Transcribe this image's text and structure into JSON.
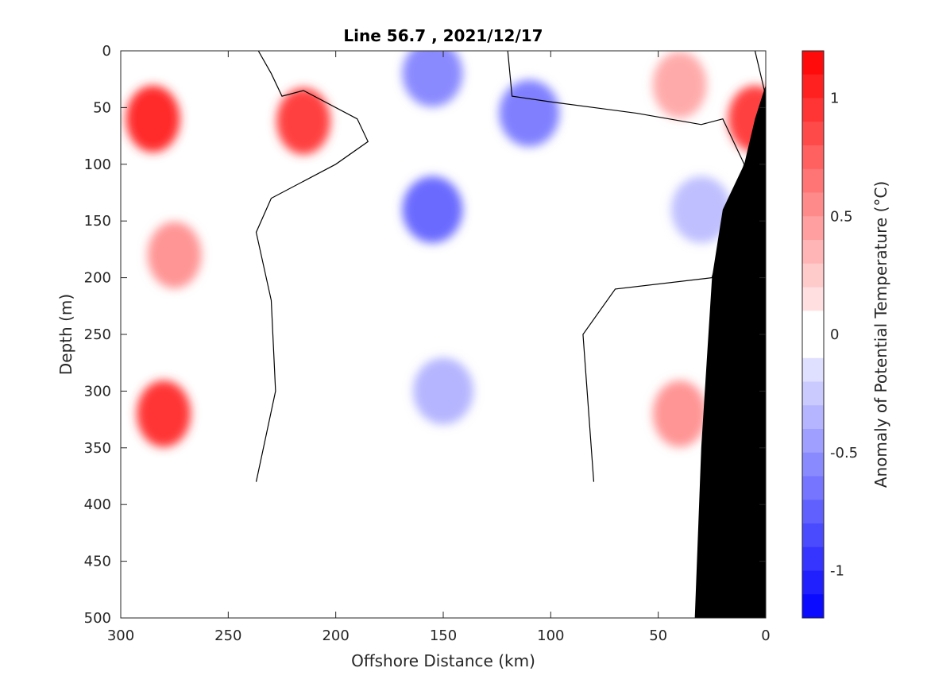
{
  "chart_data": {
    "type": "heatmap",
    "title": "Line 56.7 , 2021/12/17",
    "xlabel": "Offshore Distance (km)",
    "ylabel": "Depth (m)",
    "colorbar_label": "Anomaly of Potential Temperature (°C)",
    "xlim": [
      300,
      0
    ],
    "ylim": [
      0,
      500
    ],
    "x_ticks": [
      300,
      250,
      200,
      150,
      100,
      50,
      0
    ],
    "y_ticks": [
      0,
      50,
      100,
      150,
      200,
      250,
      300,
      350,
      400,
      450,
      500
    ],
    "clim": [
      -1.2,
      1.2
    ],
    "colorbar_ticks": [
      1,
      0.5,
      0,
      -0.5,
      -1
    ],
    "colorbar_levels": 24,
    "colors": {
      "negative": "#0000ff",
      "positive": "#ff0000",
      "zero": "#ffffff",
      "bathymetry": "#000000",
      "contour": "#000000"
    },
    "data_max_depth": 380,
    "features": [
      {
        "kind": "warm",
        "x": 285,
        "depth": 60,
        "anomaly": 1.0
      },
      {
        "kind": "warm",
        "x": 215,
        "depth": 62,
        "anomaly": 0.9
      },
      {
        "kind": "warm",
        "x": 280,
        "depth": 320,
        "anomaly": 0.95
      },
      {
        "kind": "warm",
        "x": 275,
        "depth": 180,
        "anomaly": 0.5
      },
      {
        "kind": "warm",
        "x": 5,
        "depth": 60,
        "anomaly": 0.9
      },
      {
        "kind": "warm",
        "x": 40,
        "depth": 30,
        "anomaly": 0.4
      },
      {
        "kind": "warm",
        "x": 40,
        "depth": 320,
        "anomaly": 0.5
      },
      {
        "kind": "cool",
        "x": 155,
        "depth": 140,
        "anomaly": -0.7
      },
      {
        "kind": "cool",
        "x": 155,
        "depth": 20,
        "anomaly": -0.55
      },
      {
        "kind": "cool",
        "x": 110,
        "depth": 55,
        "anomaly": -0.6
      },
      {
        "kind": "cool",
        "x": 150,
        "depth": 300,
        "anomaly": -0.35
      },
      {
        "kind": "cool",
        "x": 30,
        "depth": 140,
        "anomaly": -0.3
      }
    ],
    "bathymetry": [
      [
        0,
        30
      ],
      [
        5,
        60
      ],
      [
        10,
        100
      ],
      [
        20,
        140
      ],
      [
        25,
        200
      ],
      [
        30,
        350
      ],
      [
        33,
        500
      ]
    ]
  }
}
